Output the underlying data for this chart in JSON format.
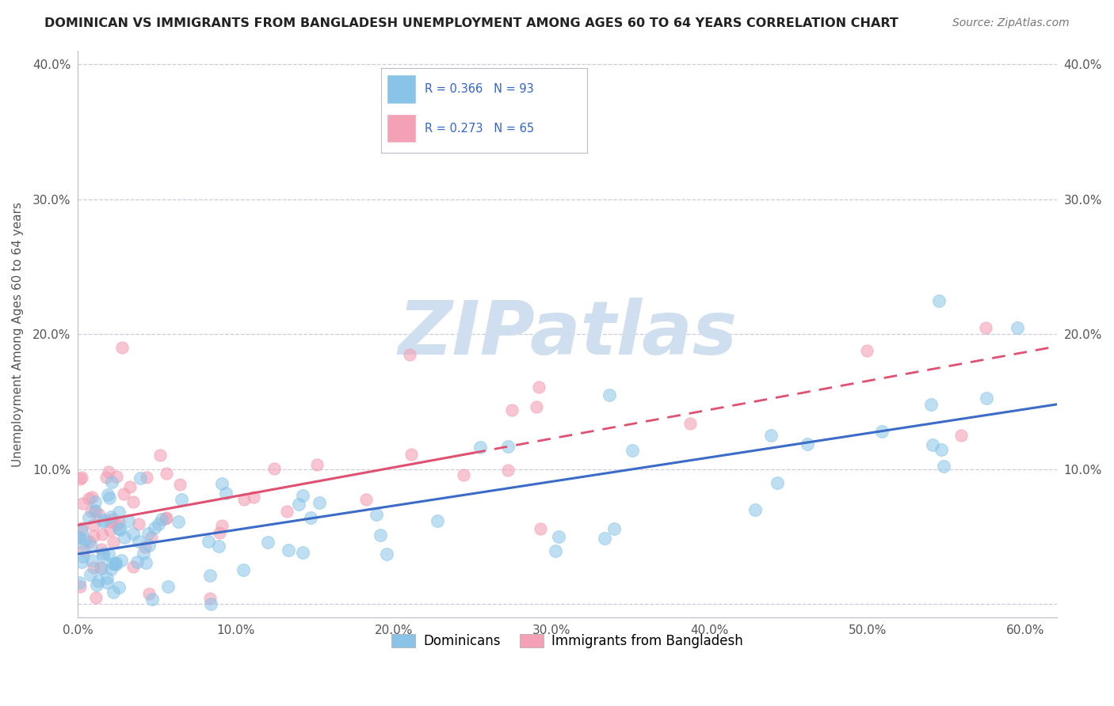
{
  "title": "DOMINICAN VS IMMIGRANTS FROM BANGLADESH UNEMPLOYMENT AMONG AGES 60 TO 64 YEARS CORRELATION CHART",
  "source": "Source: ZipAtlas.com",
  "ylabel": "Unemployment Among Ages 60 to 64 years",
  "xlim": [
    0.0,
    0.62
  ],
  "ylim": [
    -0.01,
    0.41
  ],
  "xticks": [
    0.0,
    0.1,
    0.2,
    0.3,
    0.4,
    0.5,
    0.6
  ],
  "yticks": [
    0.0,
    0.1,
    0.2,
    0.3,
    0.4
  ],
  "xtick_labels": [
    "0.0%",
    "10.0%",
    "20.0%",
    "30.0%",
    "40.0%",
    "50.0%",
    "60.0%"
  ],
  "ytick_labels_left": [
    "",
    "10.0%",
    "20.0%",
    "30.0%",
    "40.0%"
  ],
  "ytick_labels_right": [
    "",
    "10.0%",
    "20.0%",
    "30.0%",
    "40.0%"
  ],
  "dominican_color": "#89C4E8",
  "bangladesh_color": "#F4A0B5",
  "dominican_R": 0.366,
  "dominican_N": 93,
  "bangladesh_R": 0.273,
  "bangladesh_N": 65,
  "trend_dominican_color": "#3B6CC7",
  "trend_bangladesh_color": "#E05070",
  "watermark": "ZIPatlas",
  "watermark_color": "#D0DFF0",
  "legend_label_dominicans": "Dominicans",
  "legend_label_bangladesh": "Immigrants from Bangladesh",
  "background_color": "#FFFFFF",
  "grid_color": "#CCCCDD",
  "title_color": "#222222",
  "source_color": "#777777",
  "tick_color": "#555555"
}
